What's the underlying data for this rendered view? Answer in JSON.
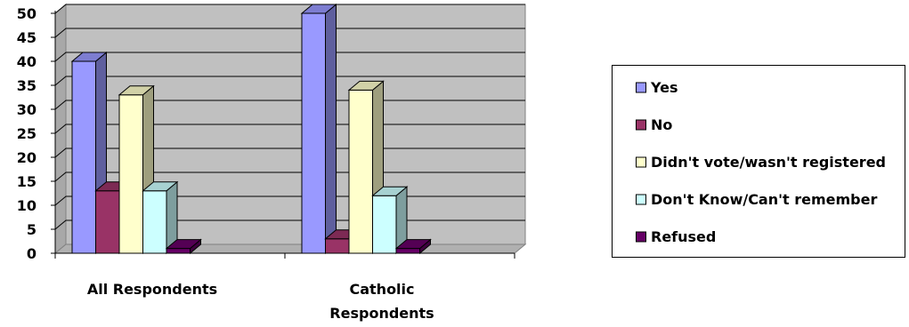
{
  "chart_data": {
    "type": "bar",
    "title": "",
    "xlabel": "",
    "ylabel": "",
    "ylim": [
      0,
      50
    ],
    "yticks": [
      0,
      5,
      10,
      15,
      20,
      25,
      30,
      35,
      40,
      45,
      50
    ],
    "grid": true,
    "legend_position": "right",
    "categories": [
      [
        "All Respondents"
      ],
      [
        "Catholic",
        "Respondents"
      ]
    ],
    "series": [
      {
        "name": "Yes",
        "color": "#9999FF",
        "values": [
          40,
          50
        ]
      },
      {
        "name": "No",
        "color": "#993366",
        "values": [
          13,
          3
        ]
      },
      {
        "name": "Didn't vote/wasn't registered",
        "color": "#FFFFCC",
        "values": [
          33,
          34
        ]
      },
      {
        "name": "Don't Know/Can't remember",
        "color": "#CCFFFF",
        "values": [
          13,
          12
        ]
      },
      {
        "name": "Refused",
        "color": "#660066",
        "values": [
          1,
          1
        ]
      }
    ]
  }
}
